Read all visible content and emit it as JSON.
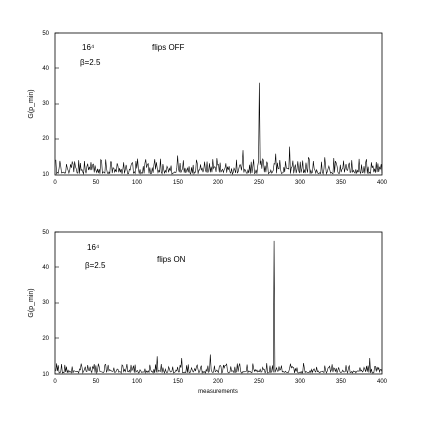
{
  "chart_data": [
    {
      "type": "line",
      "title": "",
      "xlabel": "",
      "ylabel": "G(p_min)",
      "xlim": [
        0,
        400
      ],
      "ylim": [
        10,
        50
      ],
      "grid": false,
      "xticks": [
        0,
        50,
        100,
        150,
        200,
        250,
        300,
        350,
        400
      ],
      "yticks": [
        10,
        20,
        30,
        40,
        50
      ],
      "annotations": [
        "16⁴",
        "β=2.5",
        "flips OFF"
      ],
      "spikes": [
        [
          250,
          36
        ],
        [
          287,
          18
        ],
        [
          230,
          17
        ],
        [
          270,
          16
        ],
        [
          150,
          15.5
        ],
        [
          310,
          15
        ],
        [
          330,
          15
        ]
      ],
      "series": [
        {
          "baseline": 12.5,
          "noise": 3.5,
          "seed": 11
        }
      ]
    },
    {
      "type": "line",
      "title": "",
      "xlabel": "measurements",
      "ylabel": "G(p_min)",
      "xlim": [
        0,
        400
      ],
      "ylim": [
        10,
        50
      ],
      "grid": false,
      "xticks": [
        0,
        50,
        100,
        150,
        200,
        250,
        300,
        350,
        400
      ],
      "yticks": [
        10,
        20,
        30,
        40,
        50
      ],
      "annotations": [
        "16⁴",
        "β=2.5",
        "flips ON"
      ],
      "spikes": [
        [
          268,
          47.5
        ],
        [
          190,
          15.5
        ],
        [
          125,
          15
        ],
        [
          155,
          14.5
        ],
        [
          385,
          14.5
        ]
      ],
      "series": [
        {
          "baseline": 11.5,
          "noise": 2.8,
          "seed": 29
        }
      ]
    }
  ]
}
